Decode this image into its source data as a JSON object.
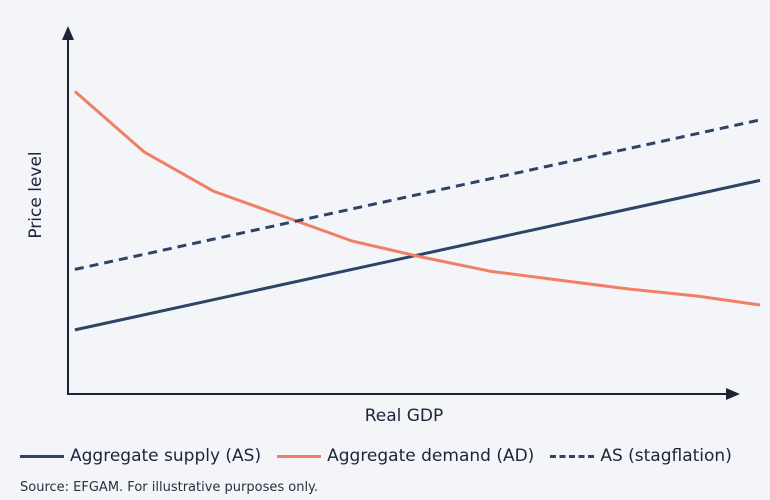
{
  "chart_data": {
    "type": "line",
    "xlabel": "Real GDP",
    "ylabel": "Price level",
    "xlim": [
      0,
      100
    ],
    "ylim": [
      0,
      100
    ],
    "grid": false,
    "legend_position": "bottom",
    "series": [
      {
        "name": "Aggregate supply (AS)",
        "style": "solid",
        "color": "#2d4466",
        "x": [
          1,
          100
        ],
        "y": [
          18,
          60
        ]
      },
      {
        "name": "Aggregate demand (AD)",
        "style": "solid",
        "color": "#f07f66",
        "x": [
          1,
          11,
          21,
          31,
          41,
          51,
          61,
          71,
          81,
          91,
          100
        ],
        "y": [
          85,
          68,
          57,
          50,
          43,
          38.5,
          34.5,
          32,
          29.5,
          27.5,
          25
        ]
      },
      {
        "name": "AS (stagflation)",
        "style": "dashed",
        "color": "#2d4466",
        "x": [
          1,
          100
        ],
        "y": [
          35,
          77
        ]
      }
    ]
  },
  "footer": {
    "source": "Source: EFGAM. For illustrative purposes only."
  }
}
